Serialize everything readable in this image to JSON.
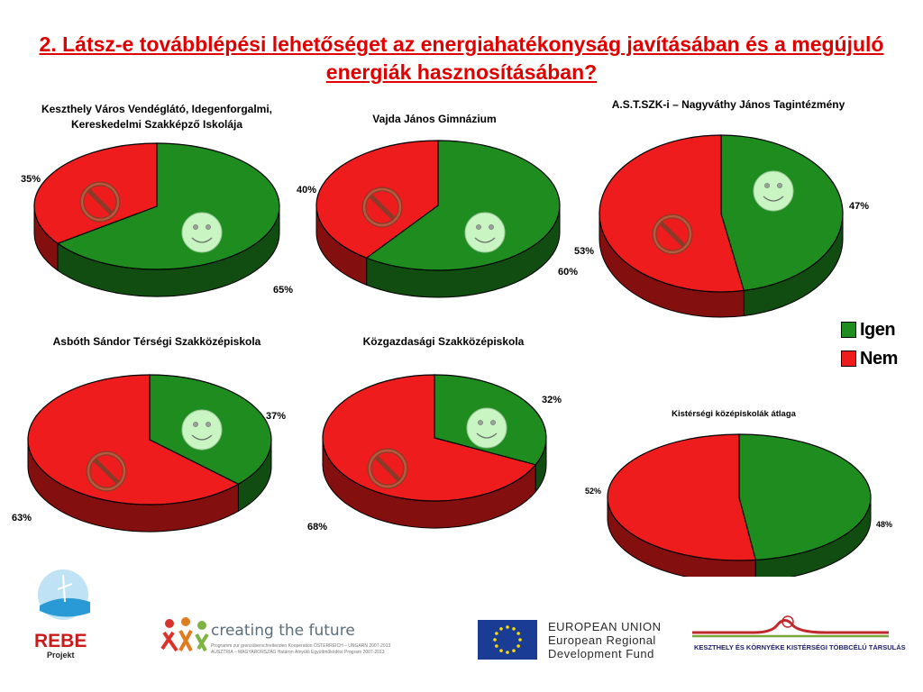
{
  "title": "2. Látsz-e továbblépési lehetőséget az energiahatékonyság javításában és a megújuló energiák hasznosításában?",
  "colors": {
    "igen": "#1e8c1e",
    "nem": "#ee1c1c",
    "title": "#e10000"
  },
  "legend": [
    {
      "label": "Igen",
      "color": "#1e8c1e"
    },
    {
      "label": "Nem",
      "color": "#ee1c1c"
    }
  ],
  "icons": [
    "smiley-icon",
    "prohibition-icon"
  ],
  "chart_data": [
    {
      "type": "pie",
      "title": "Keszthely Város Vendéglátó, Idegenforgalmi, Kereskedelmi Szakképző Iskolája",
      "categories": [
        "Igen",
        "Nem"
      ],
      "values": [
        65,
        35
      ],
      "labels": [
        "65%",
        "35%"
      ]
    },
    {
      "type": "pie",
      "title": "Vajda János Gimnázium",
      "categories": [
        "Igen",
        "Nem"
      ],
      "values": [
        60,
        40
      ],
      "labels": [
        "60%",
        "40%"
      ]
    },
    {
      "type": "pie",
      "title": "A.S.T.SZK-i – Nagyváthy János Tagintézmény",
      "categories": [
        "Igen",
        "Nem"
      ],
      "values": [
        47,
        53
      ],
      "labels": [
        "47%",
        "53%"
      ]
    },
    {
      "type": "pie",
      "title": "Asbóth Sándor Térségi Szakközépiskola",
      "categories": [
        "Igen",
        "Nem"
      ],
      "values": [
        37,
        63
      ],
      "labels": [
        "37%",
        "63%"
      ]
    },
    {
      "type": "pie",
      "title": "Közgazdasági Szakközépiskola",
      "categories": [
        "Igen",
        "Nem"
      ],
      "values": [
        32,
        68
      ],
      "labels": [
        "32%",
        "68%"
      ]
    },
    {
      "type": "pie",
      "title": "Kistérségi középiskolák átlaga",
      "categories": [
        "Igen",
        "Nem"
      ],
      "values": [
        48,
        52
      ],
      "labels": [
        "48%",
        "52%"
      ]
    }
  ],
  "footer": {
    "rebe_name": "REBE",
    "rebe_sub": "Projekt",
    "ctf_text": "creating the future",
    "ctf_sub1": "Programm zur grenzüberschreitenden Kooperation ÖSTERREICH – UNGARN 2007-2013",
    "ctf_sub2": "AUSZTRIA – MAGYARORSZÁG Határon Átnyúló Együttműködési Program 2007-2013",
    "eu_line1": "EUROPEAN UNION",
    "eu_line2": "European Regional",
    "eu_line3": "Development Fund",
    "kes_text": "KESZTHELY ÉS KÖRNYÉKE KISTÉRSÉGI TÖBBCÉLÚ TÁRSULÁS"
  }
}
